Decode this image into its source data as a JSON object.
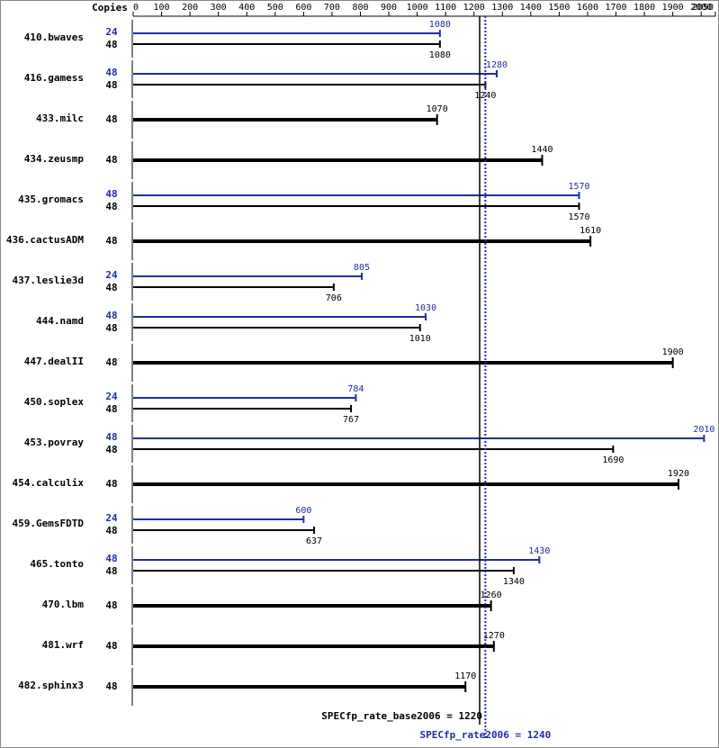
{
  "chart_data": {
    "type": "bar",
    "copies_label": "Copies",
    "categories": [
      "410.bwaves",
      "416.gamess",
      "433.milc",
      "434.zeusmp",
      "435.gromacs",
      "436.cactusADM",
      "437.leslie3d",
      "444.namd",
      "447.dealII",
      "450.soplex",
      "453.povray",
      "454.calculix",
      "459.GemsFDTD",
      "465.tonto",
      "470.lbm",
      "481.wrf",
      "482.sphinx3"
    ],
    "series": [
      {
        "color": "#1f2f9f",
        "copies": [
          24,
          48,
          null,
          null,
          48,
          null,
          24,
          48,
          null,
          24,
          48,
          null,
          24,
          48,
          null,
          null,
          null
        ],
        "values": [
          1080,
          1280,
          null,
          null,
          1570,
          null,
          805,
          1030,
          null,
          784,
          2010,
          null,
          600,
          1430,
          null,
          null,
          null
        ]
      },
      {
        "color": "#000000",
        "copies": [
          48,
          48,
          48,
          48,
          48,
          48,
          48,
          48,
          48,
          48,
          48,
          48,
          48,
          48,
          48,
          48,
          48
        ],
        "values": [
          1080,
          1240,
          1070,
          1440,
          1570,
          1610,
          706,
          1010,
          1900,
          767,
          1690,
          1920,
          637,
          1340,
          1260,
          1270,
          1170
        ]
      }
    ],
    "xlim": [
      0,
      2050
    ],
    "xticks": [
      0,
      100,
      200,
      300,
      400,
      500,
      600,
      700,
      800,
      900,
      1000,
      1100,
      1200,
      1300,
      1400,
      1500,
      1600,
      1700,
      1800,
      1900,
      2000,
      2050
    ],
    "reference_lines": [
      {
        "label": "SPECfp_rate_base2006 = 1220",
        "value": 1220,
        "color": "#000000"
      },
      {
        "label": "SPECfp_rate2006 = 1240",
        "value": 1240,
        "color": "#1f2f9f"
      }
    ]
  }
}
